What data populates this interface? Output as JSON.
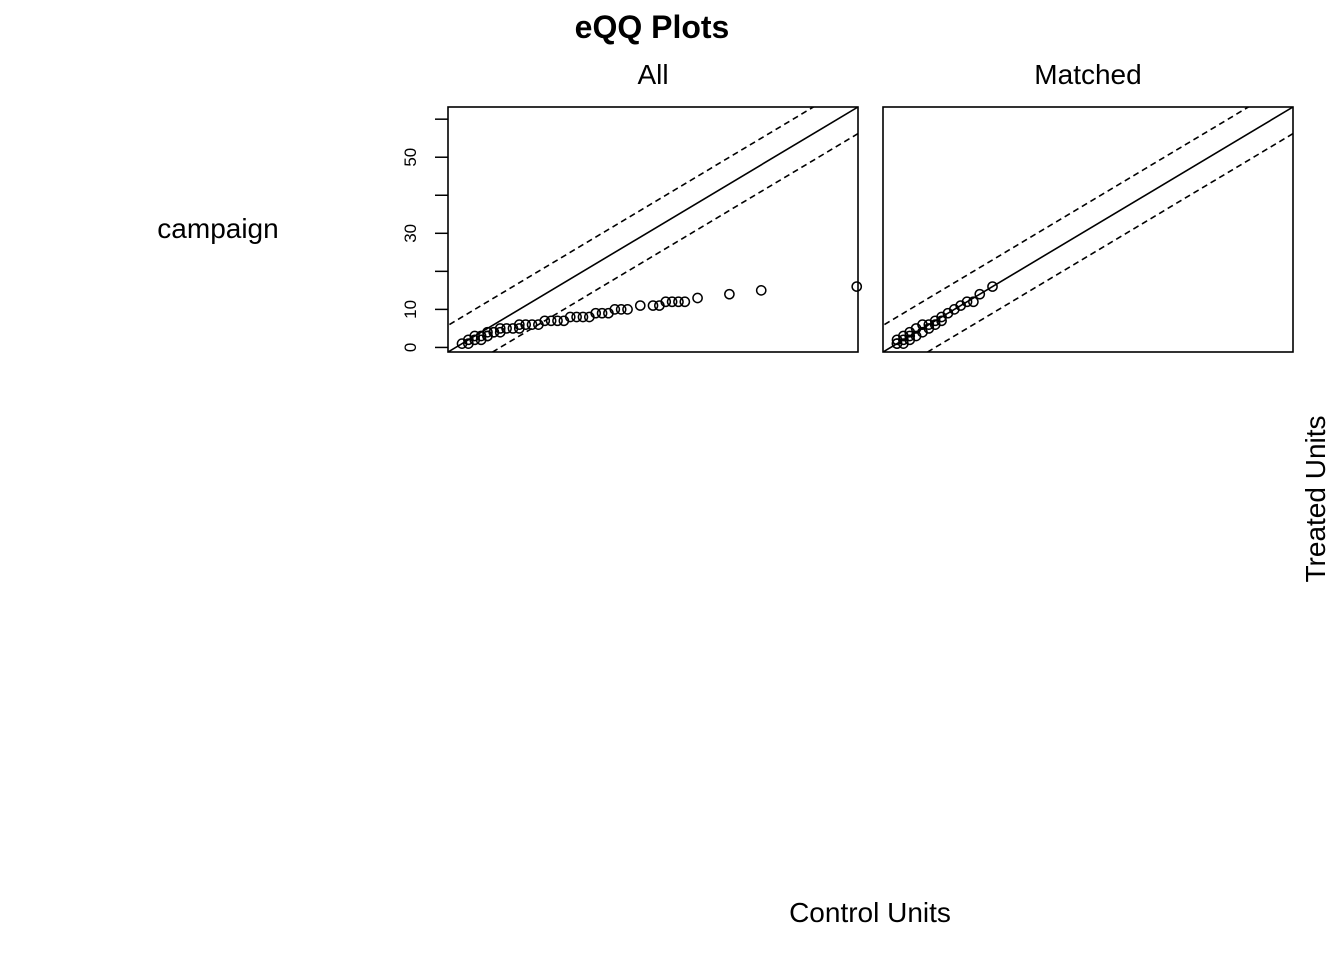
{
  "chart_data": {
    "type": "scatter",
    "title": "eQQ Plots",
    "xlabel": "Control Units",
    "ylabel": "Treated Units",
    "variable": "campaign",
    "axis": {
      "xlim": [
        -1.2,
        63.2
      ],
      "ylim": [
        -1.2,
        63.2
      ],
      "yticks": [
        0,
        10,
        30,
        50
      ],
      "minor_yticks": [
        0,
        10,
        20,
        30,
        40,
        50,
        60
      ],
      "y_tick_labels": [
        "0",
        "10",
        "30",
        "50"
      ],
      "grid": false,
      "log": false
    },
    "reference_lines": {
      "identity_slope": 1,
      "band_offset": 7
    },
    "panels": [
      {
        "name": "All",
        "x": [
          1,
          2,
          2,
          3,
          3,
          4,
          4,
          5,
          5,
          5,
          6,
          6,
          7,
          7,
          8,
          9,
          10,
          10,
          11,
          12,
          13,
          14,
          15,
          16,
          17,
          18,
          19,
          20,
          21,
          22,
          23,
          24,
          25,
          26,
          27,
          29,
          31,
          32,
          33,
          34,
          35,
          36,
          38,
          43,
          48,
          63
        ],
        "y": [
          1,
          1,
          2,
          2,
          3,
          2,
          3,
          3,
          4,
          3,
          4,
          4,
          5,
          4,
          5,
          5,
          5,
          6,
          6,
          6,
          6,
          7,
          7,
          7,
          7,
          8,
          8,
          8,
          8,
          9,
          9,
          9,
          10,
          10,
          10,
          11,
          11,
          11,
          12,
          12,
          12,
          12,
          13,
          14,
          15,
          16
        ]
      },
      {
        "name": "Matched",
        "x": [
          1,
          1,
          1,
          2,
          2,
          2,
          3,
          3,
          3,
          4,
          4,
          5,
          5,
          6,
          6,
          7,
          7,
          8,
          8,
          9,
          10,
          11,
          12,
          13,
          14,
          16
        ],
        "y": [
          1,
          1,
          2,
          1,
          2,
          3,
          2,
          3,
          4,
          3,
          5,
          4,
          6,
          5,
          6,
          6,
          7,
          7,
          8,
          9,
          10,
          11,
          12,
          12,
          14,
          16
        ]
      }
    ]
  }
}
